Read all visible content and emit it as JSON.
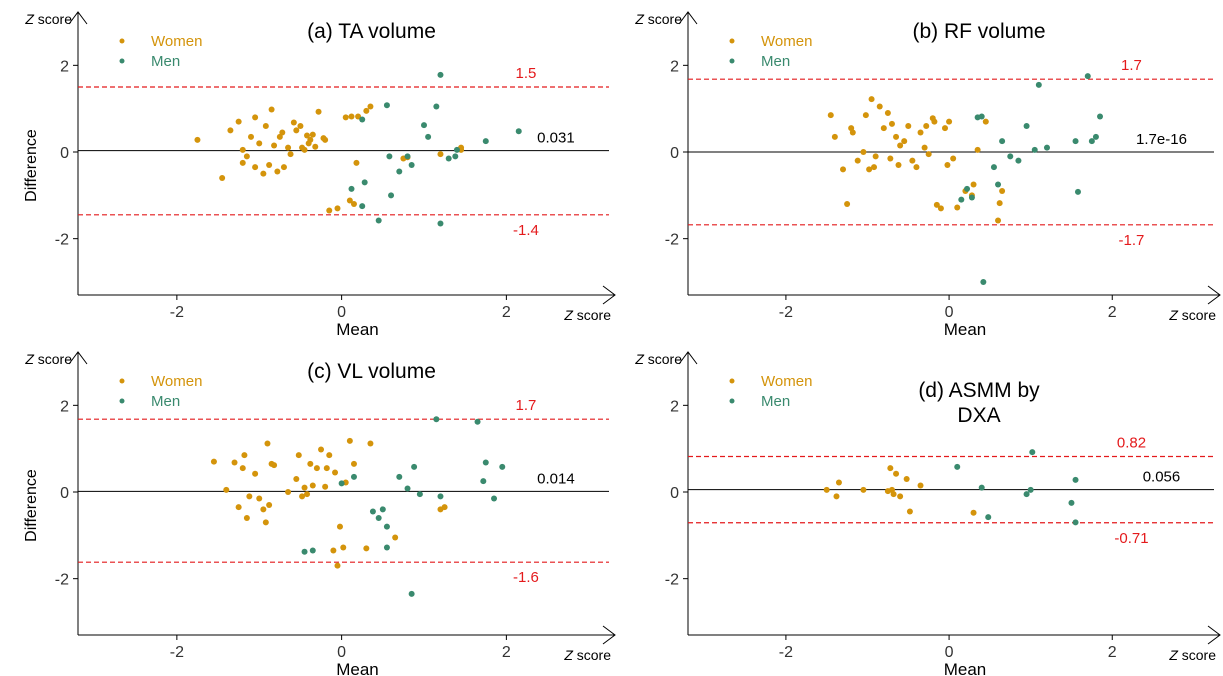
{
  "chart_data": [
    {
      "type": "scatter",
      "title": "(a) TA volume",
      "ylabel": "Difference",
      "xlabel": "Mean",
      "x_unit": "Z score",
      "y_unit": "Z score",
      "xlim": [
        -3.2,
        3.1
      ],
      "ylim": [
        -3.3,
        3.0
      ],
      "x_ticks": [
        -2,
        0,
        2
      ],
      "y_ticks": [
        -2,
        0,
        2
      ],
      "x_tick_labels": [
        "-2",
        "0",
        "2"
      ],
      "y_tick_labels": [
        "-2",
        "0",
        "2"
      ],
      "legend_position": "top-left",
      "lines": {
        "mean": {
          "value": 0.031,
          "label": "0.031"
        },
        "upper": {
          "value": 1.5,
          "label": "1.5"
        },
        "lower": {
          "value": -1.45,
          "label": "-1.4"
        }
      },
      "series": [
        {
          "name": "Women",
          "color": "#d4940b",
          "points": [
            [
              -1.75,
              0.28
            ],
            [
              -1.45,
              -0.6
            ],
            [
              -1.35,
              0.5
            ],
            [
              -1.25,
              0.7
            ],
            [
              -1.2,
              0.05
            ],
            [
              -1.2,
              -0.25
            ],
            [
              -1.15,
              -0.1
            ],
            [
              -1.1,
              0.35
            ],
            [
              -1.05,
              -0.35
            ],
            [
              -1.05,
              0.8
            ],
            [
              -1.0,
              0.2
            ],
            [
              -0.95,
              -0.5
            ],
            [
              -0.92,
              0.6
            ],
            [
              -0.88,
              -0.3
            ],
            [
              -0.85,
              0.98
            ],
            [
              -0.82,
              0.15
            ],
            [
              -0.78,
              -0.45
            ],
            [
              -0.75,
              0.35
            ],
            [
              -0.72,
              0.45
            ],
            [
              -0.7,
              -0.35
            ],
            [
              -0.65,
              0.1
            ],
            [
              -0.62,
              -0.05
            ],
            [
              -0.58,
              0.68
            ],
            [
              -0.55,
              0.5
            ],
            [
              -0.5,
              0.6
            ],
            [
              -0.48,
              0.1
            ],
            [
              -0.45,
              0.05
            ],
            [
              -0.42,
              0.38
            ],
            [
              -0.4,
              0.2
            ],
            [
              -0.38,
              0.28
            ],
            [
              -0.35,
              0.4
            ],
            [
              -0.32,
              0.12
            ],
            [
              -0.28,
              0.93
            ],
            [
              -0.22,
              0.32
            ],
            [
              -0.2,
              0.28
            ],
            [
              -0.15,
              -1.35
            ],
            [
              -0.05,
              -1.3
            ],
            [
              0.05,
              0.8
            ],
            [
              0.1,
              -1.12
            ],
            [
              0.12,
              0.82
            ],
            [
              0.15,
              -1.2
            ],
            [
              0.18,
              -0.25
            ],
            [
              0.2,
              0.82
            ],
            [
              0.3,
              0.95
            ],
            [
              0.35,
              1.05
            ],
            [
              0.75,
              -0.15
            ],
            [
              0.8,
              -0.12
            ],
            [
              1.2,
              -0.05
            ],
            [
              1.45,
              0.05
            ],
            [
              1.45,
              0.1
            ]
          ]
        },
        {
          "name": "Men",
          "color": "#3a8a6e",
          "points": [
            [
              0.12,
              -0.85
            ],
            [
              0.25,
              0.75
            ],
            [
              0.25,
              -1.25
            ],
            [
              0.28,
              -0.7
            ],
            [
              0.45,
              -1.58
            ],
            [
              0.55,
              1.08
            ],
            [
              0.58,
              -0.1
            ],
            [
              0.6,
              -1.0
            ],
            [
              0.7,
              -0.45
            ],
            [
              0.8,
              -0.1
            ],
            [
              0.85,
              -0.3
            ],
            [
              1.0,
              0.62
            ],
            [
              1.05,
              0.35
            ],
            [
              1.15,
              1.05
            ],
            [
              1.2,
              1.78
            ],
            [
              1.2,
              -1.65
            ],
            [
              1.3,
              -0.15
            ],
            [
              1.38,
              -0.1
            ],
            [
              1.4,
              0.05
            ],
            [
              1.75,
              0.25
            ],
            [
              2.15,
              0.48
            ]
          ]
        }
      ]
    },
    {
      "type": "scatter",
      "title": "(b) RF volume",
      "ylabel": "",
      "xlabel": "Mean",
      "x_unit": "Z score",
      "y_unit": "Z score",
      "xlim": [
        -3.2,
        3.1
      ],
      "ylim": [
        -3.3,
        3.0
      ],
      "x_ticks": [
        -2,
        0,
        2
      ],
      "y_ticks": [
        -2,
        0,
        2
      ],
      "x_tick_labels": [
        "-2",
        "0",
        "2"
      ],
      "y_tick_labels": [
        "-2",
        "0",
        "2"
      ],
      "legend_position": "top-left",
      "lines": {
        "mean": {
          "value": 0.0,
          "label": "1.7e-16"
        },
        "upper": {
          "value": 1.68,
          "label": "1.7"
        },
        "lower": {
          "value": -1.68,
          "label": "-1.7"
        }
      },
      "series": [
        {
          "name": "Women",
          "color": "#d4940b",
          "points": [
            [
              -1.45,
              0.85
            ],
            [
              -1.4,
              0.35
            ],
            [
              -1.3,
              -0.4
            ],
            [
              -1.25,
              -1.2
            ],
            [
              -1.2,
              0.55
            ],
            [
              -1.18,
              0.45
            ],
            [
              -1.12,
              -0.2
            ],
            [
              -1.05,
              0.0
            ],
            [
              -1.02,
              0.85
            ],
            [
              -0.98,
              -0.4
            ],
            [
              -0.95,
              1.22
            ],
            [
              -0.92,
              -0.35
            ],
            [
              -0.9,
              -0.1
            ],
            [
              -0.85,
              1.05
            ],
            [
              -0.8,
              0.55
            ],
            [
              -0.75,
              0.9
            ],
            [
              -0.72,
              -0.15
            ],
            [
              -0.7,
              0.65
            ],
            [
              -0.65,
              0.35
            ],
            [
              -0.62,
              -0.3
            ],
            [
              -0.6,
              0.15
            ],
            [
              -0.55,
              0.25
            ],
            [
              -0.5,
              0.6
            ],
            [
              -0.45,
              -0.2
            ],
            [
              -0.4,
              -0.35
            ],
            [
              -0.35,
              0.45
            ],
            [
              -0.3,
              0.1
            ],
            [
              -0.28,
              0.6
            ],
            [
              -0.25,
              -0.05
            ],
            [
              -0.2,
              0.78
            ],
            [
              -0.18,
              0.7
            ],
            [
              -0.15,
              -1.22
            ],
            [
              -0.1,
              -1.3
            ],
            [
              -0.05,
              0.55
            ],
            [
              -0.02,
              -0.3
            ],
            [
              0.0,
              0.7
            ],
            [
              0.05,
              -0.15
            ],
            [
              0.1,
              -1.28
            ],
            [
              0.2,
              -0.9
            ],
            [
              0.28,
              -1.0
            ],
            [
              0.3,
              -0.75
            ],
            [
              0.35,
              0.05
            ],
            [
              0.45,
              0.7
            ],
            [
              0.6,
              -1.58
            ],
            [
              0.62,
              -1.18
            ],
            [
              0.65,
              -0.9
            ]
          ]
        },
        {
          "name": "Men",
          "color": "#3a8a6e",
          "points": [
            [
              0.15,
              -1.1
            ],
            [
              0.22,
              -0.85
            ],
            [
              0.28,
              -1.05
            ],
            [
              0.35,
              0.8
            ],
            [
              0.4,
              0.82
            ],
            [
              0.42,
              -3.0
            ],
            [
              0.55,
              -0.35
            ],
            [
              0.6,
              -0.75
            ],
            [
              0.65,
              0.25
            ],
            [
              0.75,
              -0.1
            ],
            [
              0.85,
              -0.2
            ],
            [
              0.95,
              0.6
            ],
            [
              1.05,
              0.05
            ],
            [
              1.1,
              1.55
            ],
            [
              1.2,
              0.1
            ],
            [
              1.55,
              0.25
            ],
            [
              1.58,
              -0.92
            ],
            [
              1.7,
              1.75
            ],
            [
              1.75,
              0.25
            ],
            [
              1.8,
              0.35
            ],
            [
              1.85,
              0.82
            ]
          ]
        }
      ]
    },
    {
      "type": "scatter",
      "title": "(c) VL volume",
      "ylabel": "Difference",
      "xlabel": "Mean",
      "x_unit": "Z score",
      "y_unit": "Z score",
      "xlim": [
        -3.2,
        3.1
      ],
      "ylim": [
        -3.3,
        3.0
      ],
      "x_ticks": [
        -2,
        0,
        2
      ],
      "y_ticks": [
        -2,
        0,
        2
      ],
      "x_tick_labels": [
        "-2",
        "0",
        "2"
      ],
      "y_tick_labels": [
        "-2",
        "0",
        "2"
      ],
      "legend_position": "top-left",
      "lines": {
        "mean": {
          "value": 0.014,
          "label": "0.014"
        },
        "upper": {
          "value": 1.68,
          "label": "1.7"
        },
        "lower": {
          "value": -1.62,
          "label": "-1.6"
        }
      },
      "series": [
        {
          "name": "Women",
          "color": "#d4940b",
          "points": [
            [
              -1.55,
              0.7
            ],
            [
              -1.4,
              0.05
            ],
            [
              -1.3,
              0.68
            ],
            [
              -1.25,
              -0.35
            ],
            [
              -1.2,
              0.55
            ],
            [
              -1.18,
              0.85
            ],
            [
              -1.15,
              -0.6
            ],
            [
              -1.12,
              -0.1
            ],
            [
              -1.05,
              0.42
            ],
            [
              -1.0,
              -0.15
            ],
            [
              -0.95,
              -0.4
            ],
            [
              -0.92,
              -0.7
            ],
            [
              -0.9,
              1.12
            ],
            [
              -0.88,
              -0.3
            ],
            [
              -0.85,
              0.65
            ],
            [
              -0.82,
              0.62
            ],
            [
              -0.65,
              0.0
            ],
            [
              -0.55,
              0.3
            ],
            [
              -0.52,
              0.85
            ],
            [
              -0.48,
              -0.1
            ],
            [
              -0.45,
              0.1
            ],
            [
              -0.42,
              -0.05
            ],
            [
              -0.38,
              0.65
            ],
            [
              -0.35,
              0.15
            ],
            [
              -0.3,
              0.55
            ],
            [
              -0.25,
              0.98
            ],
            [
              -0.2,
              0.12
            ],
            [
              -0.18,
              0.55
            ],
            [
              -0.15,
              0.85
            ],
            [
              -0.1,
              -1.35
            ],
            [
              -0.08,
              0.45
            ],
            [
              -0.05,
              -1.7
            ],
            [
              -0.02,
              -0.8
            ],
            [
              0.02,
              -1.28
            ],
            [
              0.05,
              0.22
            ],
            [
              0.1,
              1.18
            ],
            [
              0.15,
              0.65
            ],
            [
              0.3,
              -1.3
            ],
            [
              0.35,
              1.12
            ],
            [
              0.65,
              -1.05
            ],
            [
              1.2,
              -0.4
            ],
            [
              1.25,
              -0.35
            ]
          ]
        },
        {
          "name": "Men",
          "color": "#3a8a6e",
          "points": [
            [
              -0.45,
              -1.38
            ],
            [
              -0.35,
              -1.35
            ],
            [
              0.0,
              0.2
            ],
            [
              0.15,
              0.35
            ],
            [
              0.38,
              -0.45
            ],
            [
              0.45,
              -0.6
            ],
            [
              0.5,
              -0.4
            ],
            [
              0.55,
              -0.8
            ],
            [
              0.55,
              -1.28
            ],
            [
              0.7,
              0.35
            ],
            [
              0.8,
              0.08
            ],
            [
              0.85,
              -2.35
            ],
            [
              0.88,
              0.58
            ],
            [
              0.95,
              -0.05
            ],
            [
              1.15,
              1.68
            ],
            [
              1.2,
              -0.1
            ],
            [
              1.65,
              1.62
            ],
            [
              1.72,
              0.25
            ],
            [
              1.75,
              0.68
            ],
            [
              1.85,
              -0.15
            ],
            [
              1.95,
              0.58
            ]
          ]
        }
      ]
    },
    {
      "type": "scatter",
      "title": "(d) ASMM by DXA",
      "title_lines": [
        "(d) ASMM by",
        "DXA"
      ],
      "ylabel": "",
      "xlabel": "Mean",
      "x_unit": "Z score",
      "y_unit": "Z score",
      "xlim": [
        -3.2,
        3.1
      ],
      "ylim": [
        -3.3,
        3.0
      ],
      "x_ticks": [
        -2,
        0,
        2
      ],
      "y_ticks": [
        -2,
        0,
        2
      ],
      "x_tick_labels": [
        "-2",
        "0",
        "2"
      ],
      "y_tick_labels": [
        "-2",
        "0",
        "2"
      ],
      "legend_position": "top-left",
      "lines": {
        "mean": {
          "value": 0.056,
          "label": "0.056"
        },
        "upper": {
          "value": 0.82,
          "label": "0.82"
        },
        "lower": {
          "value": -0.71,
          "label": "-0.71"
        }
      },
      "series": [
        {
          "name": "Women",
          "color": "#d4940b",
          "points": [
            [
              -1.5,
              0.05
            ],
            [
              -1.38,
              -0.1
            ],
            [
              -1.35,
              0.22
            ],
            [
              -1.05,
              0.05
            ],
            [
              -0.75,
              0.02
            ],
            [
              -0.72,
              0.55
            ],
            [
              -0.7,
              0.05
            ],
            [
              -0.68,
              -0.05
            ],
            [
              -0.65,
              0.42
            ],
            [
              -0.6,
              -0.1
            ],
            [
              -0.52,
              0.3
            ],
            [
              -0.48,
              -0.45
            ],
            [
              -0.35,
              0.15
            ],
            [
              0.3,
              -0.48
            ]
          ]
        },
        {
          "name": "Men",
          "color": "#3a8a6e",
          "points": [
            [
              0.1,
              0.58
            ],
            [
              0.4,
              0.1
            ],
            [
              0.48,
              -0.58
            ],
            [
              0.95,
              -0.05
            ],
            [
              1.0,
              0.05
            ],
            [
              1.02,
              0.92
            ],
            [
              1.5,
              -0.25
            ],
            [
              1.55,
              0.28
            ],
            [
              1.55,
              -0.7
            ]
          ]
        }
      ]
    }
  ]
}
